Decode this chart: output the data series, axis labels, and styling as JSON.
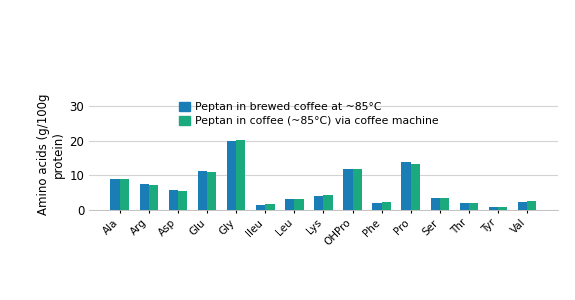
{
  "categories": [
    "Ala",
    "Arg",
    "Asp",
    "Glu",
    "Gly",
    "Ileu",
    "Leu",
    "Lys",
    "OHPro",
    "Phe",
    "Pro",
    "Ser",
    "Thr",
    "Tyr",
    "Val"
  ],
  "series1_name": "Peptan in brewed coffee at ~85°C",
  "series2_name": "Peptan in coffee (~85°C) via coffee machine",
  "series1_values": [
    9.0,
    7.5,
    5.7,
    11.2,
    20.0,
    1.5,
    3.1,
    4.0,
    11.8,
    2.0,
    13.7,
    3.6,
    2.0,
    0.8,
    2.3
  ],
  "series2_values": [
    8.8,
    7.2,
    5.5,
    11.0,
    20.1,
    1.8,
    3.2,
    4.2,
    11.9,
    2.2,
    13.2,
    3.5,
    2.0,
    0.8,
    2.5
  ],
  "color1": "#1a7db5",
  "color2": "#1aaa7d",
  "ylabel": "Amino acids (g/100g\nprotein)",
  "ylim": [
    0,
    32
  ],
  "yticks": [
    0,
    10,
    20,
    30
  ],
  "bar_width": 0.32,
  "figsize": [
    5.75,
    3.0
  ],
  "dpi": 100
}
